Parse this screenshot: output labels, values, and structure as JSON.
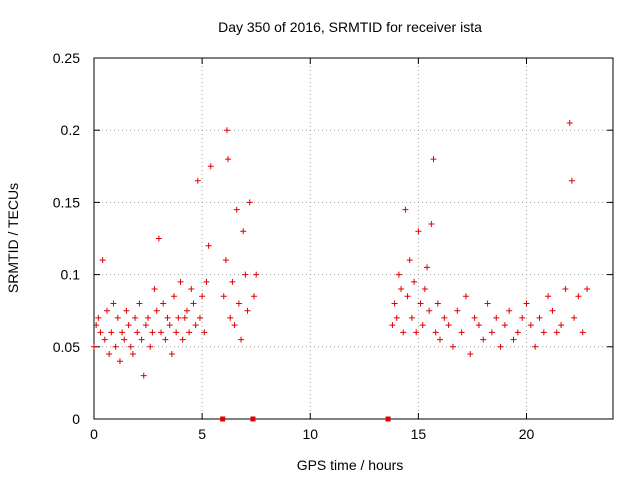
{
  "chart_data": {
    "type": "scatter",
    "title": "Day 350 of 2016, SRMTID for receiver ista",
    "xlabel": "GPS time / hours",
    "ylabel": "SRMTID / TECUs",
    "xlim": [
      0,
      24
    ],
    "ylim": [
      0,
      0.25
    ],
    "xticks": [
      0,
      5,
      10,
      15,
      20
    ],
    "yticks": [
      0,
      0.05,
      0.1,
      0.15,
      0.2,
      0.25
    ],
    "xtick_labels": [
      "0",
      "5",
      "10",
      "15",
      "20"
    ],
    "ytick_labels": [
      "0",
      "0.05",
      "0.1",
      "0.15",
      "0.2",
      "0.25"
    ],
    "grid": true,
    "marker": "+",
    "color": "#e00000",
    "zero_markers_x": [
      5.95,
      7.35,
      13.6
    ],
    "series": [
      {
        "name": "SRMTID",
        "x": [
          0.0,
          0.1,
          0.2,
          0.3,
          0.4,
          0.5,
          0.6,
          0.7,
          0.8,
          0.9,
          1.0,
          1.1,
          1.2,
          1.3,
          1.4,
          1.5,
          1.6,
          1.7,
          1.8,
          1.9,
          2.0,
          2.1,
          2.2,
          2.3,
          2.4,
          2.5,
          2.6,
          2.7,
          2.8,
          2.9,
          3.0,
          3.1,
          3.2,
          3.3,
          3.4,
          3.5,
          3.6,
          3.7,
          3.8,
          3.9,
          4.0,
          4.1,
          4.2,
          4.3,
          4.4,
          4.5,
          4.6,
          4.7,
          4.8,
          4.9,
          5.0,
          5.1,
          5.2,
          5.3,
          5.4,
          6.0,
          6.1,
          6.15,
          6.2,
          6.3,
          6.4,
          6.5,
          6.6,
          6.7,
          6.8,
          6.9,
          7.0,
          7.1,
          7.2,
          7.4,
          7.5,
          13.8,
          13.9,
          14.0,
          14.1,
          14.2,
          14.3,
          14.4,
          14.5,
          14.6,
          14.7,
          14.8,
          14.9,
          15.0,
          15.1,
          15.2,
          15.3,
          15.4,
          15.5,
          15.6,
          15.7,
          15.8,
          15.9,
          16.0,
          16.2,
          16.4,
          16.6,
          16.8,
          17.0,
          17.2,
          17.4,
          17.6,
          17.8,
          18.0,
          18.2,
          18.4,
          18.6,
          18.8,
          19.0,
          19.2,
          19.4,
          19.6,
          19.8,
          20.0,
          20.2,
          20.4,
          20.6,
          20.8,
          21.0,
          21.2,
          21.4,
          21.6,
          21.8,
          22.0,
          22.1,
          22.2,
          22.4,
          22.6,
          22.8
        ],
        "y": [
          0.05,
          0.065,
          0.07,
          0.06,
          0.11,
          0.055,
          0.075,
          0.045,
          0.06,
          0.08,
          0.05,
          0.07,
          0.04,
          0.06,
          0.055,
          0.075,
          0.065,
          0.05,
          0.045,
          0.07,
          0.06,
          0.08,
          0.055,
          0.03,
          0.065,
          0.07,
          0.05,
          0.06,
          0.09,
          0.075,
          0.125,
          0.06,
          0.08,
          0.055,
          0.07,
          0.065,
          0.045,
          0.085,
          0.06,
          0.07,
          0.095,
          0.055,
          0.07,
          0.075,
          0.06,
          0.09,
          0.08,
          0.065,
          0.165,
          0.07,
          0.085,
          0.06,
          0.095,
          0.12,
          0.175,
          0.085,
          0.11,
          0.2,
          0.18,
          0.07,
          0.095,
          0.065,
          0.145,
          0.08,
          0.055,
          0.13,
          0.1,
          0.075,
          0.15,
          0.085,
          0.1,
          0.065,
          0.08,
          0.07,
          0.1,
          0.09,
          0.06,
          0.145,
          0.085,
          0.11,
          0.07,
          0.095,
          0.06,
          0.13,
          0.08,
          0.065,
          0.09,
          0.105,
          0.075,
          0.135,
          0.18,
          0.06,
          0.08,
          0.055,
          0.07,
          0.065,
          0.05,
          0.075,
          0.06,
          0.085,
          0.045,
          0.07,
          0.065,
          0.055,
          0.08,
          0.06,
          0.07,
          0.05,
          0.065,
          0.075,
          0.055,
          0.06,
          0.07,
          0.08,
          0.065,
          0.05,
          0.07,
          0.06,
          0.085,
          0.075,
          0.06,
          0.065,
          0.09,
          0.205,
          0.165,
          0.07,
          0.085,
          0.06,
          0.09
        ]
      }
    ]
  }
}
